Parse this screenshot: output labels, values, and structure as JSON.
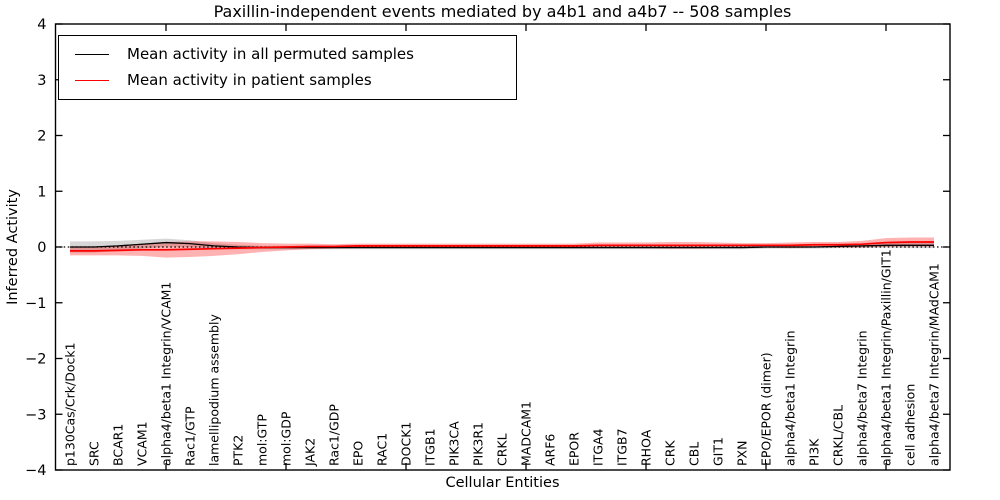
{
  "title": "Paxillin-independent events mediated by a4b1 and a4b7 -- 508 samples",
  "axes": {
    "x_label": "Cellular Entities",
    "y_label": "Inferred Activity",
    "y_ticks": [
      -4,
      -3,
      -2,
      -1,
      0,
      1,
      2,
      3,
      4
    ],
    "ylim": [
      -4,
      4
    ]
  },
  "legend": {
    "items": [
      {
        "label": "Mean activity in all permuted samples",
        "color": "#000000"
      },
      {
        "label": "Mean activity in patient samples",
        "color": "#ff0000"
      }
    ]
  },
  "chart_data": {
    "type": "line",
    "title": "Paxillin-independent events mediated by a4b1 and a4b7 -- 508 samples",
    "xlabel": "Cellular Entities",
    "ylabel": "Inferred Activity",
    "ylim": [
      -4,
      4
    ],
    "y_ticks": [
      -4,
      -3,
      -2,
      -1,
      0,
      1,
      2,
      3,
      4
    ],
    "grid": false,
    "zero_line_style": "dotted",
    "legend_position": "upper left",
    "x_major_tick_indices": [
      4,
      9,
      14,
      19,
      24,
      29,
      34
    ],
    "categories": [
      "p130Cas/Crk/Dock1",
      "SRC",
      "BCAR1",
      "VCAM1",
      "alpha4/beta1 Integrin/VCAM1",
      "Rac1/GTP",
      "lamellipodium assembly",
      "PTK2",
      "mol:GTP",
      "mol:GDP",
      "JAK2",
      "Rac1/GDP",
      "EPO",
      "RAC1",
      "DOCK1",
      "ITGB1",
      "PIK3CA",
      "PIK3R1",
      "CRKL",
      "MADCAM1",
      "ARF6",
      "EPOR",
      "ITGA4",
      "ITGB7",
      "RHOA",
      "CRK",
      "CBL",
      "GIT1",
      "PXN",
      "EPO/EPOR (dimer)",
      "alpha4/beta1 Integrin",
      "PI3K",
      "CRKL/CBL",
      "alpha4/beta7 Integrin",
      "alpha4/beta1 Integrin/Paxillin/GIT1",
      "cell adhesion",
      "alpha4/beta7 Integrin/MAdCAM1"
    ],
    "series": [
      {
        "name": "Mean activity in all permuted samples",
        "color": "#000000",
        "band_color": "#000000",
        "band_alpha": 0.16,
        "values": [
          0.0,
          0.0,
          0.02,
          0.05,
          0.08,
          0.06,
          0.02,
          0.0,
          -0.01,
          -0.01,
          -0.01,
          -0.01,
          -0.01,
          -0.01,
          -0.01,
          -0.01,
          -0.01,
          -0.01,
          -0.01,
          -0.01,
          -0.01,
          -0.01,
          -0.01,
          -0.01,
          -0.01,
          -0.01,
          -0.01,
          -0.01,
          -0.01,
          0.0,
          0.0,
          0.0,
          0.01,
          0.02,
          0.03,
          0.03,
          0.03
        ],
        "band_halfwidth": [
          0.1,
          0.1,
          0.09,
          0.08,
          0.07,
          0.06,
          0.05,
          0.04,
          0.03,
          0.03,
          0.03,
          0.03,
          0.03,
          0.03,
          0.03,
          0.03,
          0.03,
          0.03,
          0.03,
          0.03,
          0.03,
          0.03,
          0.03,
          0.03,
          0.03,
          0.03,
          0.03,
          0.03,
          0.03,
          0.03,
          0.03,
          0.03,
          0.03,
          0.04,
          0.04,
          0.05,
          0.05
        ]
      },
      {
        "name": "Mean activity in patient samples",
        "color": "#ff0000",
        "band_color": "#ff0000",
        "band_alpha": 0.3,
        "values": [
          -0.07,
          -0.07,
          -0.06,
          -0.05,
          -0.05,
          -0.04,
          -0.03,
          -0.02,
          -0.01,
          0.0,
          0.01,
          0.01,
          0.02,
          0.02,
          0.02,
          0.02,
          0.02,
          0.02,
          0.02,
          0.02,
          0.02,
          0.02,
          0.03,
          0.03,
          0.03,
          0.03,
          0.03,
          0.03,
          0.03,
          0.03,
          0.03,
          0.04,
          0.04,
          0.05,
          0.08,
          0.09,
          0.09
        ],
        "band_halfwidth": [
          0.08,
          0.08,
          0.09,
          0.11,
          0.14,
          0.14,
          0.13,
          0.11,
          0.08,
          0.06,
          0.05,
          0.04,
          0.04,
          0.04,
          0.04,
          0.04,
          0.04,
          0.04,
          0.04,
          0.04,
          0.04,
          0.04,
          0.05,
          0.05,
          0.05,
          0.06,
          0.06,
          0.05,
          0.04,
          0.04,
          0.05,
          0.05,
          0.05,
          0.06,
          0.08,
          0.08,
          0.08
        ]
      }
    ]
  }
}
